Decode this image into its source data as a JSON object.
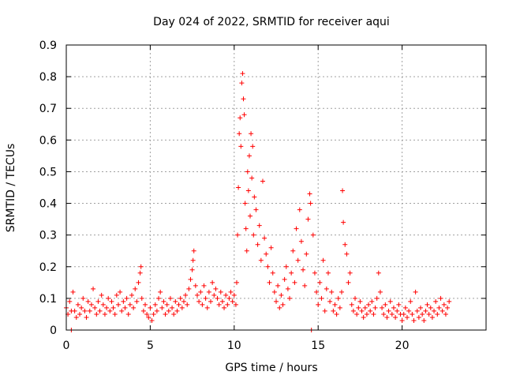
{
  "chart_data": {
    "type": "scatter",
    "title": "Day 024 of 2022, SRMTID for receiver aqui",
    "xlabel": "GPS time / hours",
    "ylabel": "SRMTID / TECUs",
    "xlim": [
      0,
      25
    ],
    "ylim": [
      0,
      0.9
    ],
    "x_ticks": [
      0,
      5,
      10,
      15,
      20
    ],
    "y_ticks": [
      0,
      0.1,
      0.2,
      0.3,
      0.4,
      0.5,
      0.6,
      0.7,
      0.8,
      0.9
    ],
    "x_tick_labels": [
      "0",
      "5",
      "10",
      "15",
      "20"
    ],
    "y_tick_labels": [
      "0",
      "0.1",
      "0.2",
      "0.3",
      "0.4",
      "0.5",
      "0.6",
      "0.7",
      "0.8",
      "0.9"
    ],
    "grid": true,
    "marker": "+",
    "marker_color": "#ff0000",
    "series": [
      {
        "name": "SRMTID",
        "points": [
          [
            0.0,
            0.07
          ],
          [
            0.1,
            0.05
          ],
          [
            0.2,
            0.09
          ],
          [
            0.3,
            0.06
          ],
          [
            0.3,
            0.0
          ],
          [
            0.4,
            0.12
          ],
          [
            0.5,
            0.06
          ],
          [
            0.6,
            0.04
          ],
          [
            0.7,
            0.08
          ],
          [
            0.8,
            0.05
          ],
          [
            0.9,
            0.07
          ],
          [
            1.0,
            0.1
          ],
          [
            1.1,
            0.06
          ],
          [
            1.2,
            0.04
          ],
          [
            1.3,
            0.09
          ],
          [
            1.4,
            0.06
          ],
          [
            1.5,
            0.08
          ],
          [
            1.6,
            0.13
          ],
          [
            1.7,
            0.07
          ],
          [
            1.8,
            0.05
          ],
          [
            1.9,
            0.09
          ],
          [
            2.0,
            0.06
          ],
          [
            2.1,
            0.11
          ],
          [
            2.2,
            0.08
          ],
          [
            2.3,
            0.05
          ],
          [
            2.4,
            0.07
          ],
          [
            2.5,
            0.1
          ],
          [
            2.6,
            0.06
          ],
          [
            2.7,
            0.09
          ],
          [
            2.8,
            0.07
          ],
          [
            2.9,
            0.05
          ],
          [
            3.0,
            0.11
          ],
          [
            3.1,
            0.08
          ],
          [
            3.2,
            0.12
          ],
          [
            3.3,
            0.06
          ],
          [
            3.4,
            0.09
          ],
          [
            3.5,
            0.07
          ],
          [
            3.6,
            0.1
          ],
          [
            3.7,
            0.05
          ],
          [
            3.8,
            0.08
          ],
          [
            3.9,
            0.11
          ],
          [
            4.0,
            0.07
          ],
          [
            4.1,
            0.13
          ],
          [
            4.2,
            0.09
          ],
          [
            4.3,
            0.15
          ],
          [
            4.4,
            0.18
          ],
          [
            4.45,
            0.2
          ],
          [
            4.5,
            0.1
          ],
          [
            4.6,
            0.06
          ],
          [
            4.7,
            0.08
          ],
          [
            4.8,
            0.05
          ],
          [
            4.9,
            0.04
          ],
          [
            5.0,
            0.07
          ],
          [
            5.1,
            0.03
          ],
          [
            5.2,
            0.05
          ],
          [
            5.3,
            0.08
          ],
          [
            5.4,
            0.06
          ],
          [
            5.5,
            0.1
          ],
          [
            5.6,
            0.12
          ],
          [
            5.7,
            0.07
          ],
          [
            5.8,
            0.09
          ],
          [
            5.9,
            0.05
          ],
          [
            6.0,
            0.08
          ],
          [
            6.1,
            0.06
          ],
          [
            6.2,
            0.1
          ],
          [
            6.3,
            0.07
          ],
          [
            6.4,
            0.05
          ],
          [
            6.5,
            0.09
          ],
          [
            6.6,
            0.06
          ],
          [
            6.7,
            0.08
          ],
          [
            6.8,
            0.1
          ],
          [
            6.9,
            0.07
          ],
          [
            7.0,
            0.09
          ],
          [
            7.1,
            0.11
          ],
          [
            7.2,
            0.08
          ],
          [
            7.3,
            0.13
          ],
          [
            7.4,
            0.16
          ],
          [
            7.5,
            0.19
          ],
          [
            7.55,
            0.22
          ],
          [
            7.6,
            0.25
          ],
          [
            7.7,
            0.14
          ],
          [
            7.8,
            0.11
          ],
          [
            7.9,
            0.09
          ],
          [
            8.0,
            0.12
          ],
          [
            8.1,
            0.08
          ],
          [
            8.2,
            0.14
          ],
          [
            8.3,
            0.1
          ],
          [
            8.4,
            0.07
          ],
          [
            8.5,
            0.12
          ],
          [
            8.6,
            0.09
          ],
          [
            8.7,
            0.15
          ],
          [
            8.8,
            0.11
          ],
          [
            8.9,
            0.13
          ],
          [
            9.0,
            0.1
          ],
          [
            9.1,
            0.08
          ],
          [
            9.2,
            0.12
          ],
          [
            9.3,
            0.09
          ],
          [
            9.4,
            0.07
          ],
          [
            9.5,
            0.11
          ],
          [
            9.6,
            0.08
          ],
          [
            9.7,
            0.1
          ],
          [
            9.8,
            0.12
          ],
          [
            9.9,
            0.09
          ],
          [
            10.0,
            0.11
          ],
          [
            10.1,
            0.08
          ],
          [
            10.15,
            0.15
          ],
          [
            10.2,
            0.3
          ],
          [
            10.25,
            0.45
          ],
          [
            10.3,
            0.62
          ],
          [
            10.35,
            0.67
          ],
          [
            10.4,
            0.58
          ],
          [
            10.45,
            0.78
          ],
          [
            10.5,
            0.81
          ],
          [
            10.55,
            0.73
          ],
          [
            10.6,
            0.68
          ],
          [
            10.65,
            0.4
          ],
          [
            10.7,
            0.32
          ],
          [
            10.75,
            0.25
          ],
          [
            10.8,
            0.5
          ],
          [
            10.85,
            0.44
          ],
          [
            10.9,
            0.55
          ],
          [
            10.95,
            0.36
          ],
          [
            11.0,
            0.62
          ],
          [
            11.05,
            0.48
          ],
          [
            11.1,
            0.58
          ],
          [
            11.15,
            0.3
          ],
          [
            11.2,
            0.42
          ],
          [
            11.3,
            0.38
          ],
          [
            11.4,
            0.27
          ],
          [
            11.5,
            0.33
          ],
          [
            11.6,
            0.22
          ],
          [
            11.7,
            0.47
          ],
          [
            11.8,
            0.29
          ],
          [
            11.9,
            0.24
          ],
          [
            12.0,
            0.2
          ],
          [
            12.1,
            0.15
          ],
          [
            12.2,
            0.26
          ],
          [
            12.3,
            0.18
          ],
          [
            12.4,
            0.12
          ],
          [
            12.5,
            0.09
          ],
          [
            12.6,
            0.14
          ],
          [
            12.7,
            0.07
          ],
          [
            12.8,
            0.11
          ],
          [
            12.9,
            0.08
          ],
          [
            13.0,
            0.16
          ],
          [
            13.1,
            0.2
          ],
          [
            13.2,
            0.13
          ],
          [
            13.3,
            0.1
          ],
          [
            13.4,
            0.18
          ],
          [
            13.5,
            0.25
          ],
          [
            13.6,
            0.15
          ],
          [
            13.7,
            0.32
          ],
          [
            13.8,
            0.22
          ],
          [
            13.9,
            0.38
          ],
          [
            14.0,
            0.28
          ],
          [
            14.1,
            0.19
          ],
          [
            14.2,
            0.14
          ],
          [
            14.3,
            0.24
          ],
          [
            14.4,
            0.35
          ],
          [
            14.5,
            0.43
          ],
          [
            14.55,
            0.4
          ],
          [
            14.6,
            0.0
          ],
          [
            14.7,
            0.3
          ],
          [
            14.8,
            0.18
          ],
          [
            14.9,
            0.12
          ],
          [
            15.0,
            0.08
          ],
          [
            15.1,
            0.15
          ],
          [
            15.2,
            0.1
          ],
          [
            15.3,
            0.22
          ],
          [
            15.4,
            0.06
          ],
          [
            15.5,
            0.13
          ],
          [
            15.6,
            0.18
          ],
          [
            15.7,
            0.09
          ],
          [
            15.8,
            0.12
          ],
          [
            15.9,
            0.06
          ],
          [
            16.0,
            0.08
          ],
          [
            16.1,
            0.05
          ],
          [
            16.2,
            0.1
          ],
          [
            16.3,
            0.07
          ],
          [
            16.4,
            0.12
          ],
          [
            16.45,
            0.44
          ],
          [
            16.5,
            0.34
          ],
          [
            16.6,
            0.27
          ],
          [
            16.7,
            0.24
          ],
          [
            16.8,
            0.15
          ],
          [
            16.9,
            0.18
          ],
          [
            17.0,
            0.08
          ],
          [
            17.1,
            0.06
          ],
          [
            17.2,
            0.1
          ],
          [
            17.3,
            0.05
          ],
          [
            17.4,
            0.07
          ],
          [
            17.5,
            0.09
          ],
          [
            17.6,
            0.06
          ],
          [
            17.7,
            0.04
          ],
          [
            17.8,
            0.07
          ],
          [
            17.9,
            0.05
          ],
          [
            18.0,
            0.08
          ],
          [
            18.1,
            0.06
          ],
          [
            18.2,
            0.09
          ],
          [
            18.3,
            0.05
          ],
          [
            18.4,
            0.07
          ],
          [
            18.5,
            0.1
          ],
          [
            18.6,
            0.18
          ],
          [
            18.7,
            0.12
          ],
          [
            18.8,
            0.07
          ],
          [
            18.9,
            0.05
          ],
          [
            19.0,
            0.08
          ],
          [
            19.1,
            0.04
          ],
          [
            19.2,
            0.06
          ],
          [
            19.3,
            0.09
          ],
          [
            19.4,
            0.05
          ],
          [
            19.5,
            0.07
          ],
          [
            19.6,
            0.04
          ],
          [
            19.7,
            0.06
          ],
          [
            19.8,
            0.08
          ],
          [
            19.9,
            0.05
          ],
          [
            20.0,
            0.03
          ],
          [
            20.1,
            0.05
          ],
          [
            20.2,
            0.07
          ],
          [
            20.3,
            0.04
          ],
          [
            20.4,
            0.06
          ],
          [
            20.5,
            0.09
          ],
          [
            20.6,
            0.05
          ],
          [
            20.7,
            0.03
          ],
          [
            20.8,
            0.12
          ],
          [
            20.9,
            0.06
          ],
          [
            21.0,
            0.04
          ],
          [
            21.1,
            0.07
          ],
          [
            21.2,
            0.05
          ],
          [
            21.3,
            0.03
          ],
          [
            21.4,
            0.06
          ],
          [
            21.5,
            0.08
          ],
          [
            21.6,
            0.05
          ],
          [
            21.7,
            0.07
          ],
          [
            21.8,
            0.04
          ],
          [
            21.9,
            0.06
          ],
          [
            22.0,
            0.09
          ],
          [
            22.1,
            0.05
          ],
          [
            22.2,
            0.07
          ],
          [
            22.3,
            0.1
          ],
          [
            22.4,
            0.06
          ],
          [
            22.5,
            0.08
          ],
          [
            22.6,
            0.05
          ],
          [
            22.7,
            0.07
          ],
          [
            22.8,
            0.09
          ]
        ]
      }
    ]
  }
}
